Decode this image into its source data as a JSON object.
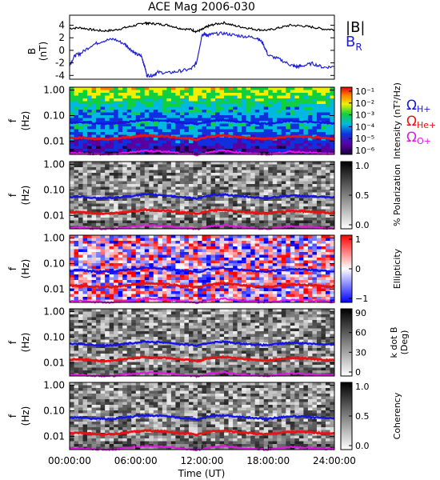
{
  "title": "ACE Mag 2006-030",
  "xlabel": "Time (UT)",
  "x_ticks": [
    "00:00:00",
    "06:00:00",
    "12:00:00",
    "18:00:00",
    "24:00:00"
  ],
  "colors": {
    "B_total": "#000000",
    "B_R": "#1f1fd6",
    "omega_H": "#1414e6",
    "omega_He": "#e61414",
    "omega_O": "#e614e6"
  },
  "legend": {
    "top": [
      {
        "label": "|B|",
        "color": "#000000"
      },
      {
        "label": "B",
        "sub": "R",
        "color": "#1f1fd6"
      }
    ],
    "gyro": [
      {
        "label": "Ω",
        "sub": "H+",
        "color": "#1414e6"
      },
      {
        "label": "Ω",
        "sub": "He+",
        "color": "#e61414"
      },
      {
        "label": "Ω",
        "sub": "O+",
        "color": "#e614e6"
      }
    ]
  },
  "chart_data": [
    {
      "type": "line",
      "ylabel_top": "B",
      "ylabel_bottom": "(nT)",
      "x_range_hours": [
        0,
        24
      ],
      "ylim": [
        -4.6,
        5.6
      ],
      "y_ticks": [
        "4",
        "2",
        "0",
        "-2",
        "-4"
      ],
      "y_tick_values": [
        4,
        2,
        0,
        -2,
        -4
      ],
      "series": [
        {
          "name": "|B|",
          "x_hours": [
            0,
            1,
            2,
            3,
            4,
            5,
            6,
            6.8,
            7.2,
            8,
            9,
            10,
            11,
            11.5,
            12,
            12.5,
            13,
            14,
            15,
            16,
            17,
            18,
            19,
            20,
            21,
            22,
            23,
            24
          ],
          "values": [
            3.5,
            3.6,
            3.3,
            3.1,
            3.2,
            3.6,
            4.0,
            4.4,
            4.3,
            4.2,
            4.0,
            3.5,
            3.3,
            3.0,
            3.3,
            3.8,
            4.1,
            4.4,
            3.9,
            3.6,
            3.3,
            3.2,
            3.6,
            4.0,
            3.9,
            3.7,
            3.4,
            3.3
          ]
        },
        {
          "name": "B_R",
          "x_hours": [
            0,
            0.5,
            1,
            2,
            3,
            4,
            5,
            5.5,
            6,
            6.5,
            6.8,
            7,
            7.5,
            8,
            9,
            10,
            11,
            11.5,
            12,
            12.2,
            12.5,
            13,
            14,
            15,
            16,
            17,
            17.5,
            18,
            19,
            20,
            20.5,
            21,
            22,
            23,
            24
          ],
          "values": [
            -2.3,
            -0.8,
            -0.5,
            0.8,
            1.5,
            1.8,
            1.0,
            0.2,
            -0.6,
            -0.9,
            -2.5,
            -4.0,
            -4.0,
            -3.5,
            -3.6,
            -3.3,
            -3.0,
            -2.0,
            2.5,
            2.6,
            2.4,
            2.6,
            2.7,
            2.4,
            2.2,
            2.0,
            1.2,
            -0.8,
            -1.4,
            -2.3,
            -2.6,
            -2.5,
            -2.1,
            -2.7,
            -2.6
          ]
        }
      ]
    },
    {
      "type": "heatmap",
      "id": "intensity",
      "ylabel_top": "f",
      "ylabel_bottom": "(Hz)",
      "y_ticks": [
        "1.00",
        "0.10",
        "0.01"
      ],
      "colorbar_label": "Intensity (nT²/Hz)",
      "colorbar_ticks": [
        "10⁻¹",
        "10⁻²",
        "10⁻³",
        "10⁻⁴",
        "10⁻⁵",
        "10⁻⁶"
      ]
    },
    {
      "type": "heatmap",
      "id": "polarization",
      "ylabel_top": "f",
      "ylabel_bottom": "(Hz)",
      "y_ticks": [
        "1.00",
        "0.10",
        "0.01"
      ],
      "colorbar_label": "% Polarization",
      "colorbar_ticks": [
        "1.0",
        "0.5",
        "0.0"
      ]
    },
    {
      "type": "heatmap",
      "id": "ellipticity",
      "ylabel_top": "f",
      "ylabel_bottom": "(Hz)",
      "y_ticks": [
        "1.00",
        "0.10",
        "0.01"
      ],
      "colorbar_label": "Ellipticity",
      "colorbar_ticks": [
        "1",
        "0",
        "−1"
      ]
    },
    {
      "type": "heatmap",
      "id": "kdotb",
      "ylabel_top": "f",
      "ylabel_bottom": "(Hz)",
      "y_ticks": [
        "1.00",
        "0.10",
        "0.01"
      ],
      "colorbar_label": "k dot B",
      "colorbar_label2": "(Deg)",
      "colorbar_ticks": [
        "90",
        "60",
        "30",
        "0"
      ]
    },
    {
      "type": "heatmap",
      "id": "coherency",
      "ylabel_top": "f",
      "ylabel_bottom": "(Hz)",
      "y_ticks": [
        "1.00",
        "0.10",
        "0.01"
      ],
      "colorbar_label": "Coherency",
      "colorbar_ticks": [
        "1.0",
        "0.5",
        "0.0"
      ]
    }
  ],
  "gyrofrequency_lines": {
    "x_hours": [
      0,
      1,
      2,
      3,
      4,
      5,
      6,
      6.8,
      7.2,
      8,
      9,
      10,
      11,
      11.5,
      12,
      12.5,
      13,
      14,
      15,
      16,
      17,
      18,
      19,
      20,
      21,
      22,
      23,
      24
    ],
    "H": [
      0.053,
      0.055,
      0.05,
      0.048,
      0.049,
      0.055,
      0.061,
      0.067,
      0.066,
      0.064,
      0.061,
      0.053,
      0.05,
      0.046,
      0.05,
      0.058,
      0.063,
      0.067,
      0.059,
      0.055,
      0.05,
      0.049,
      0.055,
      0.061,
      0.059,
      0.056,
      0.052,
      0.05
    ],
    "He": [
      0.0133,
      0.0137,
      0.0126,
      0.0118,
      0.0122,
      0.0137,
      0.0152,
      0.0168,
      0.0164,
      0.016,
      0.0152,
      0.0133,
      0.0126,
      0.0114,
      0.0126,
      0.0145,
      0.0156,
      0.0168,
      0.0149,
      0.0137,
      0.0126,
      0.0122,
      0.0137,
      0.0152,
      0.0149,
      0.0141,
      0.013,
      0.0126
    ],
    "O": [
      0.0033,
      0.0034,
      0.0031,
      0.003,
      0.003,
      0.0034,
      0.0038,
      0.0042,
      0.0041,
      0.004,
      0.0038,
      0.0033,
      0.0031,
      0.0029,
      0.0031,
      0.0036,
      0.0039,
      0.0042,
      0.0037,
      0.0034,
      0.0031,
      0.003,
      0.0034,
      0.0038,
      0.0037,
      0.0035,
      0.0032,
      0.0031
    ]
  }
}
